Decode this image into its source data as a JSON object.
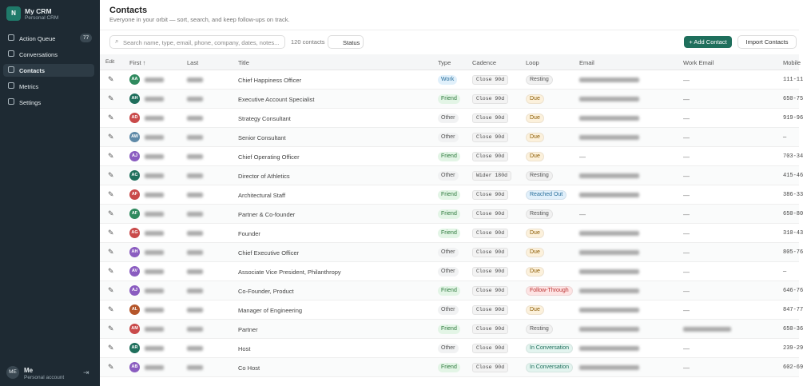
{
  "sidebar": {
    "app": "My CRM",
    "app_sub": "Personal CRM",
    "nav": [
      {
        "label": "Action Queue",
        "badge": "77"
      },
      {
        "label": "Conversations"
      },
      {
        "label": "Contacts",
        "active": true
      },
      {
        "label": "Metrics"
      },
      {
        "label": "Settings"
      }
    ],
    "user": {
      "initials": "ME",
      "name": "Me",
      "sub": "Personal account"
    }
  },
  "header": {
    "title": "Contacts",
    "subtitle": "Everyone in your orbit — sort, search, and keep follow-ups on track."
  },
  "toolbar": {
    "search_placeholder": "Search name, type, email, phone, company, dates, notes...",
    "count": "120 contacts",
    "status": "Status",
    "add": "+ Add Contact",
    "import": "Import Contacts"
  },
  "table": {
    "columns": [
      "Edit",
      "First ↑",
      "Last",
      "Title",
      "Type",
      "Cadence",
      "Loop",
      "Email",
      "Work Email",
      "Mobile"
    ],
    "rows": [
      {
        "initials": "AA",
        "color": "#2f8a5e",
        "title": "Chief Happiness Officer",
        "type": "Work",
        "cadence": "Close 90d",
        "loop": "Resting",
        "email": null,
        "work_email": "—",
        "mobile": "111-11"
      },
      {
        "initials": "AH",
        "color": "#1f6f5c",
        "title": "Executive Account Specialist",
        "type": "Friend",
        "cadence": "Close 90d",
        "loop": "Due",
        "email": null,
        "work_email": "—",
        "mobile": "650-75"
      },
      {
        "initials": "AD",
        "color": "#c94a4a",
        "title": "Strategy Consultant",
        "type": "Other",
        "cadence": "Close 90d",
        "loop": "Due",
        "email": null,
        "work_email": "—",
        "mobile": "919-96"
      },
      {
        "initials": "AW",
        "color": "#5f8aa8",
        "title": "Senior Consultant",
        "type": "Other",
        "cadence": "Close 90d",
        "loop": "Due",
        "email": null,
        "work_email": "—",
        "mobile": "—"
      },
      {
        "initials": "AJ",
        "color": "#8a5cc0",
        "title": "Chief Operating Officer",
        "type": "Friend",
        "cadence": "Close 90d",
        "loop": "Due",
        "email": "—",
        "work_email": "—",
        "mobile": "703-34"
      },
      {
        "initials": "AC",
        "color": "#1f6f5c",
        "title": "Director of Athletics",
        "type": "Other",
        "cadence": "Wider 180d",
        "loop": "Resting",
        "email": null,
        "work_email": "—",
        "mobile": "415-46"
      },
      {
        "initials": "AF",
        "color": "#c94a4a",
        "title": "Architectural Staff",
        "type": "Friend",
        "cadence": "Close 90d",
        "loop": "Reached Out",
        "email": null,
        "work_email": "—",
        "mobile": "386-33"
      },
      {
        "initials": "AF",
        "color": "#2f8a5e",
        "title": "Partner & Co-founder",
        "type": "Friend",
        "cadence": "Close 90d",
        "loop": "Resting",
        "email": "—",
        "work_email": "—",
        "mobile": "650-80"
      },
      {
        "initials": "AG",
        "color": "#c94a4a",
        "title": "Founder",
        "type": "Friend",
        "cadence": "Close 90d",
        "loop": "Due",
        "email": null,
        "work_email": "—",
        "mobile": "310-43"
      },
      {
        "initials": "AH",
        "color": "#8a5cc0",
        "title": "Chief Executive Officer",
        "type": "Other",
        "cadence": "Close 90d",
        "loop": "Due",
        "email": null,
        "work_email": "—",
        "mobile": "805-76"
      },
      {
        "initials": "AV",
        "color": "#8a5cc0",
        "title": "Associate Vice President, Philanthropy",
        "type": "Other",
        "cadence": "Close 90d",
        "loop": "Due",
        "email": null,
        "work_email": "—",
        "mobile": "—"
      },
      {
        "initials": "AJ",
        "color": "#8a5cc0",
        "title": "Co-Founder, Product",
        "type": "Friend",
        "cadence": "Close 90d",
        "loop": "Follow-Through",
        "email": null,
        "work_email": "—",
        "mobile": "646-76"
      },
      {
        "initials": "AL",
        "color": "#b5562a",
        "title": "Manager of Engineering",
        "type": "Other",
        "cadence": "Close 90d",
        "loop": "Due",
        "email": null,
        "work_email": "—",
        "mobile": "847-77"
      },
      {
        "initials": "AM",
        "color": "#c94a4a",
        "title": "Partner",
        "type": "Friend",
        "cadence": "Close 90d",
        "loop": "Resting",
        "email": null,
        "work_email": null,
        "mobile": "650-36"
      },
      {
        "initials": "AR",
        "color": "#1f6f5c",
        "title": "Host",
        "type": "Other",
        "cadence": "Close 90d",
        "loop": "In Conversation",
        "email": null,
        "work_email": "—",
        "mobile": "239-29"
      },
      {
        "initials": "AB",
        "color": "#8a5cc0",
        "title": "Co Host",
        "type": "Friend",
        "cadence": "Close 90d",
        "loop": "In Conversation",
        "email": null,
        "work_email": "—",
        "mobile": "602-69"
      }
    ]
  }
}
